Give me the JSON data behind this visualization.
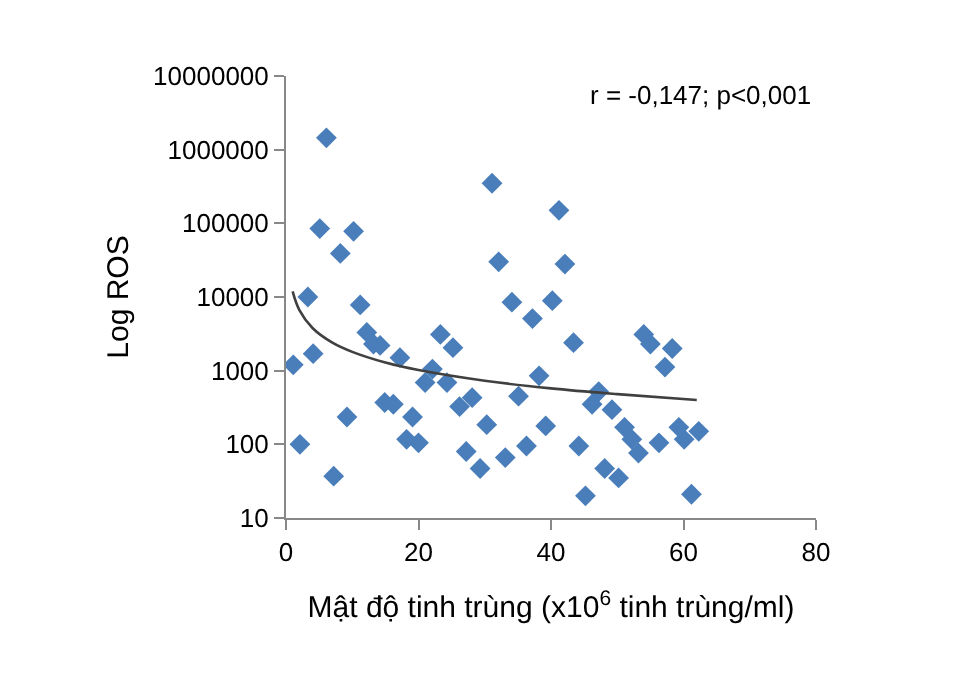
{
  "chart_data": {
    "type": "scatter",
    "xlabel": "Mật độ tinh trùng (x10$^{6}$ tinh trùng/ml)",
    "ylabel": "Log ROS",
    "annotations": [
      "r = -0,147; p<0,001"
    ],
    "log": "y",
    "legend": false,
    "marker": "diamond",
    "xlim": [
      0,
      80
    ],
    "xticks": [
      0,
      20,
      40,
      60,
      80
    ],
    "ylim": [
      10,
      10000000
    ],
    "yticks": [
      10,
      100,
      1000,
      10000,
      100000,
      1000000,
      10000000
    ],
    "series": [
      {
        "color": "#4a7ebb",
        "x": [
          1.1,
          2.1,
          3.3,
          4.1,
          5.1,
          6.1,
          7.2,
          8.2,
          9.2,
          10.2,
          11.2,
          12.2,
          13.2,
          14.2,
          14.9,
          16.2,
          17.2,
          18.2,
          19.1,
          20.0,
          21.0,
          22.1,
          23.3,
          24.3,
          25.2,
          26.2,
          27.2,
          28.1,
          29.3,
          30.3,
          31.1,
          32.1,
          33.1,
          34.1,
          35.1,
          36.3,
          37.2,
          38.2,
          39.2,
          40.2,
          41.2,
          42.1,
          43.4,
          44.2,
          45.2,
          46.2,
          47.2,
          48.1,
          49.2,
          50.2,
          51.1,
          52.2,
          53.2,
          54.0,
          55.0,
          56.3,
          57.2,
          58.3,
          59.3,
          60.1,
          61.2,
          62.3
        ],
        "values": [
          1200,
          100,
          10000,
          1700,
          85000,
          1450000,
          37,
          39000,
          235,
          78000,
          7800,
          3300,
          2300,
          2200,
          370,
          350,
          1500,
          117,
          235,
          105,
          690,
          1050,
          3100,
          690,
          2050,
          325,
          80,
          430,
          47,
          185,
          350000,
          30000,
          66,
          8500,
          450,
          95,
          5100,
          850,
          178,
          8900,
          150000,
          28000,
          2400,
          95,
          20,
          350,
          520,
          47,
          295,
          35,
          170,
          117,
          76,
          3100,
          2300,
          105,
          1120,
          2000,
          170,
          117,
          21,
          150
        ]
      },
      {
        "type": "line",
        "color": "#404040",
        "line_style": "solid",
        "marker": "none",
        "x": [
          1,
          2,
          4,
          7,
          10,
          15,
          20,
          30,
          40,
          50,
          62
        ],
        "values": [
          11900,
          6700,
          3800,
          2400,
          1800,
          1290,
          1020,
          730,
          575,
          480,
          400
        ]
      }
    ]
  }
}
